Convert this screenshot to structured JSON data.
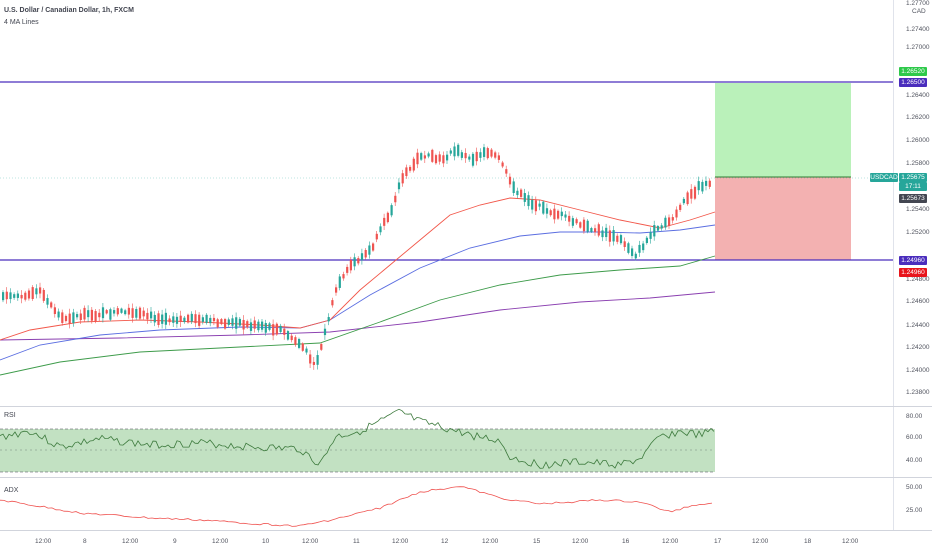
{
  "header": {
    "symbol_title": "U.S. Dollar / Canadian Dollar, 1h, FXCM",
    "indicator": "4 MA Lines"
  },
  "price_axis": {
    "currency": "CAD",
    "top_partial": "1.27700",
    "ticks": [
      "1.27400",
      "1.27000",
      "1.26800",
      "1.26400",
      "1.26200",
      "1.26000",
      "1.25800",
      "1.25400",
      "1.25200",
      "1.24800",
      "1.24600",
      "1.24400",
      "1.24200",
      "1.24000",
      "1.23800"
    ]
  },
  "price_labels": {
    "take_profit": "1.26520",
    "upper_line": "1.26500",
    "symbol_tag": "USDCAD",
    "last_price": "1.25675",
    "countdown": "17:11",
    "bid": "1.25673",
    "lower_line": "1.24960",
    "stop": "1.24960"
  },
  "rsi": {
    "label": "RSI",
    "ticks": [
      "80.00",
      "60.00",
      "40.00"
    ]
  },
  "adx": {
    "label": "ADX",
    "ticks": [
      "50.00",
      "25.00"
    ]
  },
  "time_axis": {
    "labels": [
      "12:00",
      "8",
      "12:00",
      "9",
      "12:00",
      "10",
      "12:00",
      "11",
      "12:00",
      "12",
      "12:00",
      "15",
      "12:00",
      "16",
      "12:00",
      "17",
      "12:00",
      "18",
      "12:00"
    ]
  },
  "colors": {
    "bull_candle": "#26a69a",
    "bear_candle": "#ef5350",
    "horizontal_line": "#4a2dbd",
    "ma_red": "#f2574a",
    "ma_blue": "#5b6ee1",
    "ma_green": "#3d9b4a",
    "ma_purple": "#8a3fb0",
    "profit_zone": "#b3f0b3",
    "loss_zone": "#f2a9a9",
    "rsi_band": "#b7dcb7"
  }
}
